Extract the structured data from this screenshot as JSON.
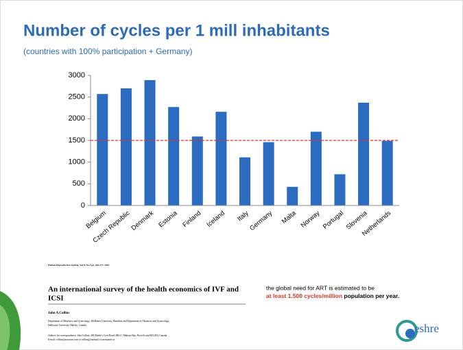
{
  "chart_data": {
    "type": "bar",
    "title": "Number of cycles per 1 mill inhabitants",
    "subtitle": "(countries with 100% participation + Germany)",
    "categories": [
      "Belgium",
      "Czech Republic",
      "Denmark",
      "Estonia",
      "Finland",
      "Iceland",
      "Italy",
      "Germany",
      "Malta",
      "Norway",
      "Portugal",
      "Slovenia",
      "Netherlands"
    ],
    "values": [
      2570,
      2700,
      2890,
      2270,
      1590,
      2160,
      1110,
      1460,
      430,
      1700,
      720,
      2370,
      1490
    ],
    "color": "#2b6cc0",
    "ylim": [
      0,
      3000
    ],
    "yticks": [
      0,
      500,
      1000,
      1500,
      2000,
      2500,
      3000
    ],
    "reference_line": 1500,
    "reference_color": "#d9362b"
  },
  "citation": "Human Reproduction Update, Vol.8, No.3 pp. 265-277, 2002",
  "paper": {
    "title": "An international survey of the health economics of IVF and ICSI",
    "author": "John A.Collins",
    "affiliation": [
      "Department of Obstetrics and Gynecology, McMaster University, Hamilton and Department of Obstetrics and Gynecology,",
      "Dalhousie University, Halifax, Canada"
    ],
    "address": [
      "Address for correspondence: John Collins, 400 Mader's Cove Road, RR # 1 Mahone Bay, Nova Scotia B0J 2E0, Canada.",
      "E-mail: collins@auracom.com or collinsj@mcmail.cis.mcmaster.ca"
    ]
  },
  "note": {
    "line1": "the global need for ART is estimated  to be",
    "highlight": "at least 1.500 cycles/million",
    "rest": " population per year."
  },
  "logo": "eshre"
}
